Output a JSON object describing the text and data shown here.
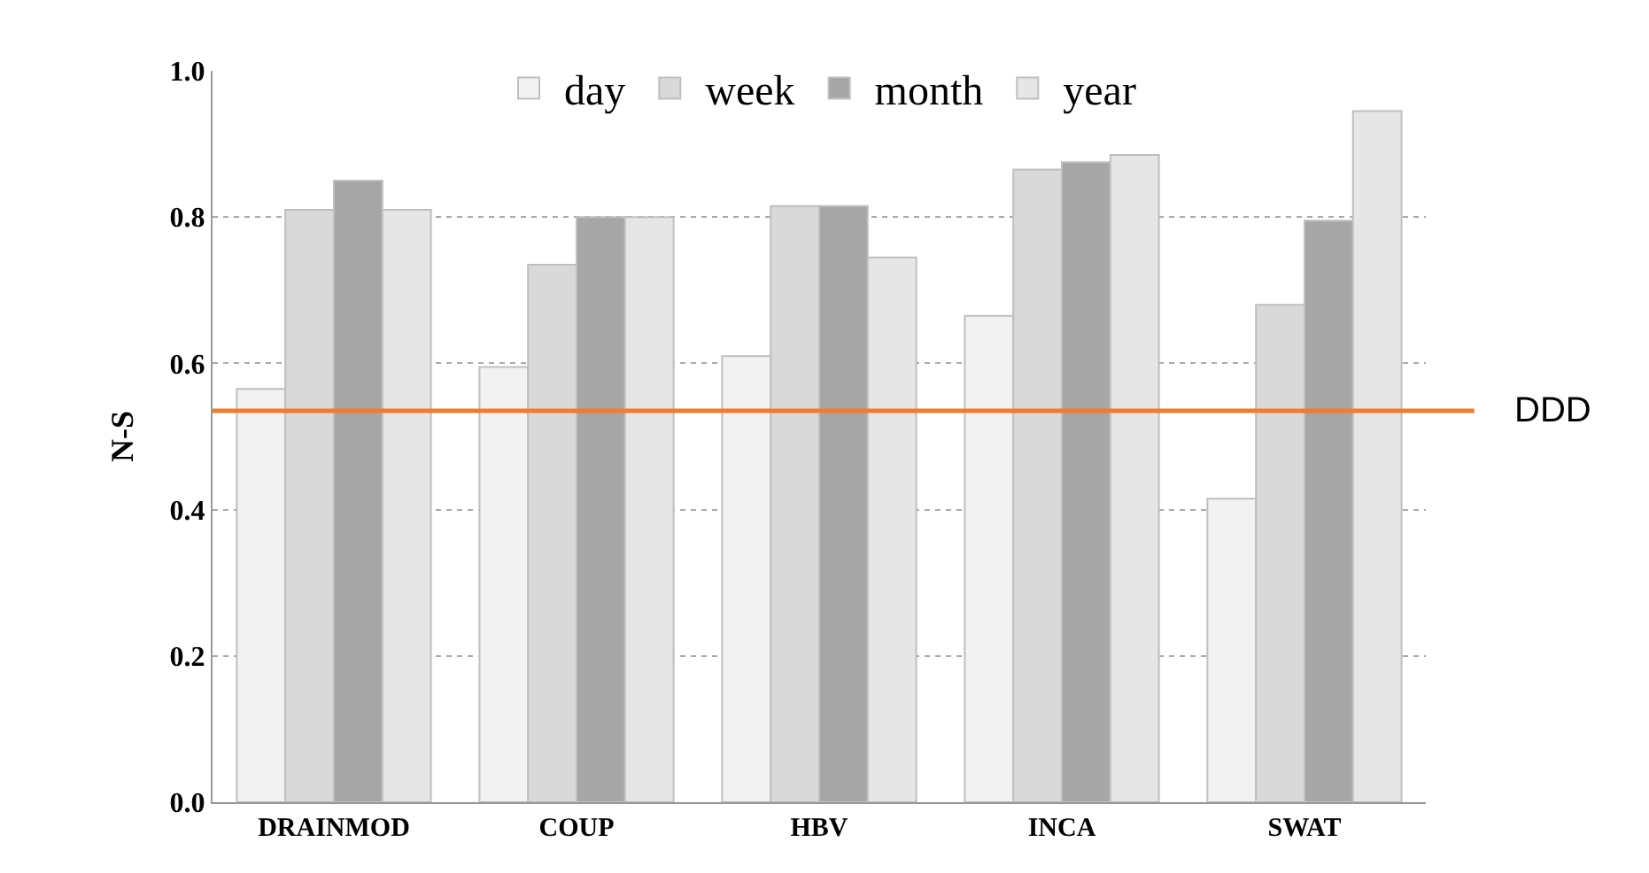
{
  "chart_data": {
    "type": "bar",
    "ylabel": "N-S",
    "categories": [
      "DRAINMOD",
      "COUP",
      "HBV",
      "INCA",
      "SWAT"
    ],
    "series": [
      {
        "name": "day",
        "color": "#f2f2f2",
        "values": [
          0.565,
          0.595,
          0.61,
          0.665,
          0.415
        ]
      },
      {
        "name": "week",
        "color": "#d9d9d9",
        "values": [
          0.81,
          0.735,
          0.815,
          0.865,
          0.68
        ]
      },
      {
        "name": "month",
        "color": "#a6a6a6",
        "values": [
          0.85,
          0.8,
          0.815,
          0.875,
          0.795
        ]
      },
      {
        "name": "year",
        "color": "#e6e6e6",
        "values": [
          0.81,
          0.8,
          0.745,
          0.885,
          0.945
        ]
      }
    ],
    "ylim": [
      0,
      1.0
    ],
    "yticks": [
      {
        "value": 0,
        "label": "0.0"
      },
      0.2,
      0.4,
      0.6,
      0.8,
      {
        "value": 1.0,
        "label": "1.0"
      }
    ],
    "grid": "y",
    "legend": "top",
    "ref_lines": [
      {
        "axis": "y",
        "value": 0.535,
        "label": "DDD",
        "color": "#ed7d31"
      }
    ]
  }
}
